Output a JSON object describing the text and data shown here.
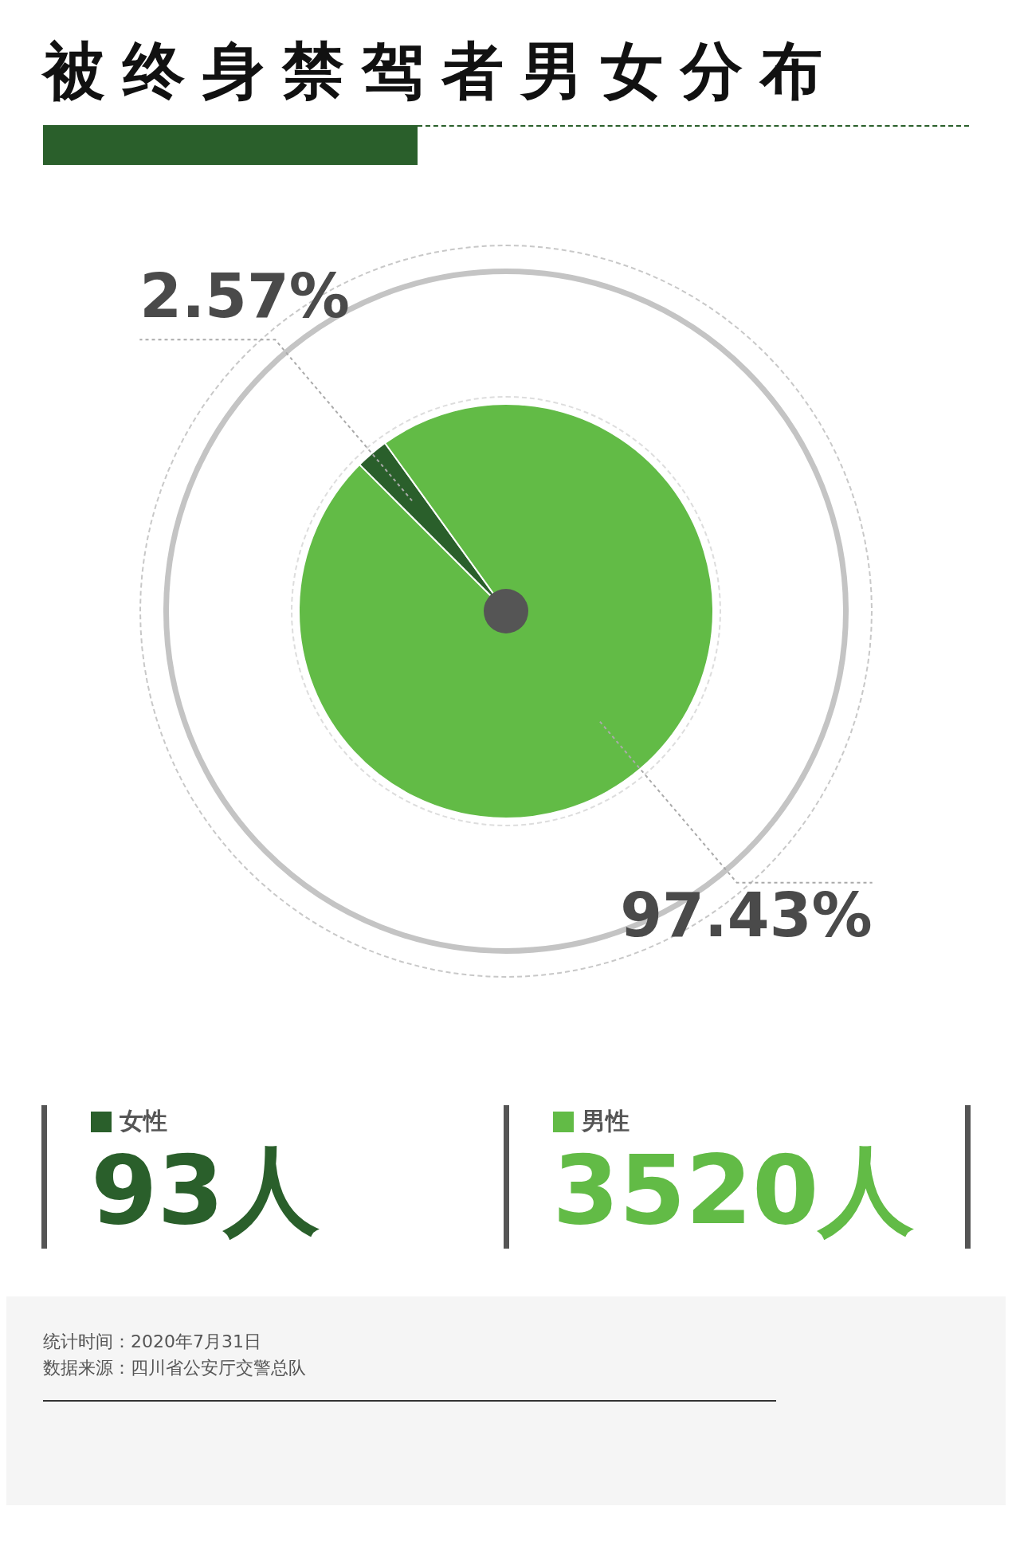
{
  "chart_data": {
    "type": "pie",
    "title": "被终身禁驾者男女分布",
    "categories": [
      "女性",
      "男性"
    ],
    "values": [
      2.57,
      97.43
    ],
    "value_labels": [
      "2.57%",
      "97.43%"
    ],
    "colors": [
      "#2a5f2b",
      "#62bb46"
    ],
    "legend": "bottom",
    "annotations": [
      "93人",
      "3520人",
      "统计时间：2020年7月31日",
      "数据来源：四川省公安厅交警总队"
    ]
  }
}
